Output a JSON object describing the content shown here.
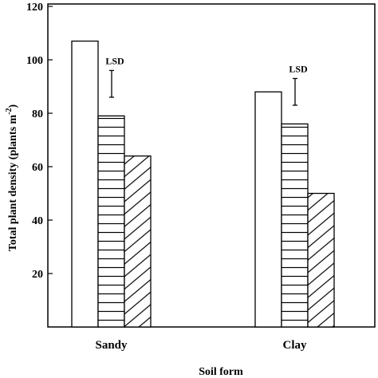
{
  "chart_data": {
    "type": "bar",
    "title": "",
    "xlabel": "Soil form",
    "ylabel": "Total plant density (plants m",
    "ylabel_superscript": "-2",
    "ylabel_close": ")",
    "categories": [
      "Sandy",
      "Clay"
    ],
    "series": [
      {
        "values": [
          107,
          88
        ],
        "pattern": "open",
        "color": "#ffffff"
      },
      {
        "values": [
          79,
          76
        ],
        "pattern": "horizontal-lines",
        "color": "#ffffff"
      },
      {
        "values": [
          64,
          50
        ],
        "pattern": "diagonal-lines",
        "color": "#ffffff"
      }
    ],
    "ylim": [
      0,
      120
    ],
    "yticks": [
      20,
      40,
      60,
      80,
      100,
      120
    ],
    "grid": false,
    "legend": "none",
    "annotations": [
      {
        "category": "Sandy",
        "label": "LSD",
        "center": 91,
        "half_length": 5
      },
      {
        "category": "Clay",
        "label": "LSD",
        "center": 88,
        "half_length": 5
      }
    ]
  }
}
